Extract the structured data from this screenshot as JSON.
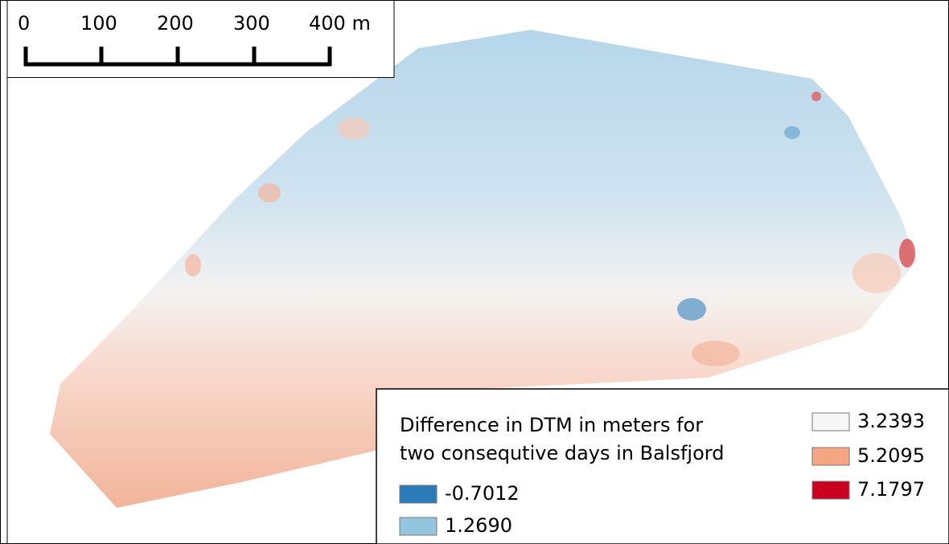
{
  "scale_bar": {
    "labels": [
      "0",
      "100",
      "200",
      "300",
      "400 m"
    ]
  },
  "legend": {
    "title_lines": [
      "Difference in DTM in meters for",
      "two consequtive days in Balsfjord"
    ],
    "items": [
      {
        "label": "-0.7012",
        "color": "#2b7bb9"
      },
      {
        "label": "1.2690",
        "color": "#92c5de"
      },
      {
        "label": "3.2393",
        "color": "#f7f7f7"
      },
      {
        "label": "5.2095",
        "color": "#f4a582"
      },
      {
        "label": "7.1797",
        "color": "#ca0020"
      }
    ]
  }
}
